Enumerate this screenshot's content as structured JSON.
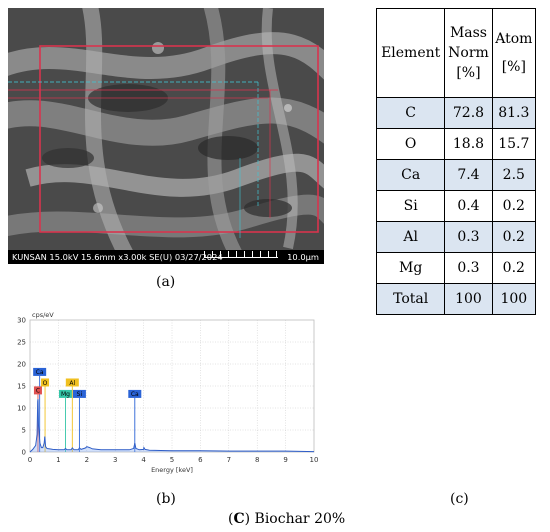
{
  "sem": {
    "info_text": "KUNSAN 15.0kV 15.6mm x3.00k SE(U) 03/27/2024",
    "scale_text": "10.0µm"
  },
  "captions": {
    "a": "(a)",
    "b": "(b)",
    "c": "(c)",
    "figure_prefix": "(",
    "figure_letter": "C",
    "figure_rest": ") Biochar 20%"
  },
  "table": {
    "headers": {
      "element": "Element",
      "mass_line1": "Mass",
      "mass_line2": "Norm",
      "mass_line3": "[%]",
      "atom_line1": "Atom",
      "atom_line2": "[%]"
    },
    "rows": [
      {
        "element": "C",
        "mass": "72.8",
        "atom": "81.3"
      },
      {
        "element": "O",
        "mass": "18.8",
        "atom": "15.7"
      },
      {
        "element": "Ca",
        "mass": "7.4",
        "atom": "2.5"
      },
      {
        "element": "Si",
        "mass": "0.4",
        "atom": "0.2"
      },
      {
        "element": "Al",
        "mass": "0.3",
        "atom": "0.2"
      },
      {
        "element": "Mg",
        "mass": "0.3",
        "atom": "0.2"
      },
      {
        "element": "Total",
        "mass": "100",
        "atom": "100"
      }
    ]
  },
  "chart_data": {
    "type": "line",
    "ylabel": "cps/eV",
    "xlabel": "Energy [keV]",
    "xlim": [
      0,
      10
    ],
    "ylim": [
      0,
      30
    ],
    "x_ticks": [
      "0",
      "1",
      "2",
      "3",
      "4",
      "5",
      "6",
      "7",
      "8",
      "9",
      "10"
    ],
    "y_ticks": [
      "0",
      "5",
      "10",
      "15",
      "20",
      "25",
      "30"
    ],
    "grid": true,
    "series": [
      {
        "x": [
          0.0,
          0.1,
          0.2,
          0.25,
          0.27,
          0.28,
          0.3,
          0.35,
          0.4,
          0.45,
          0.5,
          0.52,
          0.55,
          0.6,
          0.8,
          1.0,
          1.2,
          1.25,
          1.3,
          1.45,
          1.49,
          1.55,
          1.7,
          1.74,
          1.8,
          1.95,
          2.0,
          2.1,
          2.2,
          2.5,
          3.0,
          3.5,
          3.65,
          3.69,
          3.73,
          3.85,
          4.0,
          4.01,
          4.05,
          4.2,
          5,
          6,
          7,
          8,
          9,
          10
        ],
        "y": [
          0.0,
          0.6,
          1.5,
          4.0,
          11.5,
          12.0,
          6.0,
          2.0,
          1.0,
          1.0,
          2.0,
          3.5,
          1.2,
          0.8,
          0.6,
          0.5,
          0.5,
          0.8,
          0.5,
          0.5,
          0.9,
          0.5,
          0.5,
          0.9,
          0.6,
          0.9,
          1.2,
          1.0,
          0.7,
          0.5,
          0.5,
          0.5,
          0.8,
          2.0,
          0.8,
          0.5,
          0.6,
          1.0,
          0.6,
          0.4,
          0.3,
          0.3,
          0.2,
          0.2,
          0.2,
          0.1
        ]
      }
    ],
    "peak_labels": [
      {
        "label": "Ca",
        "x": 0.34,
        "y": 18.2,
        "color": "#2a63d6"
      },
      {
        "label": "C",
        "x": 0.28,
        "y": 14.0,
        "color": "#e05050"
      },
      {
        "label": "O",
        "x": 0.53,
        "y": 15.8,
        "color": "#f0c020"
      },
      {
        "label": "Mg",
        "x": 1.25,
        "y": 13.2,
        "color": "#35c6a8"
      },
      {
        "label": "Al",
        "x": 1.49,
        "y": 15.8,
        "color": "#f0c020"
      },
      {
        "label": "Si",
        "x": 1.74,
        "y": 13.2,
        "color": "#2a63d6"
      },
      {
        "label": "Ca",
        "x": 3.69,
        "y": 13.2,
        "color": "#2a63d6"
      }
    ]
  }
}
